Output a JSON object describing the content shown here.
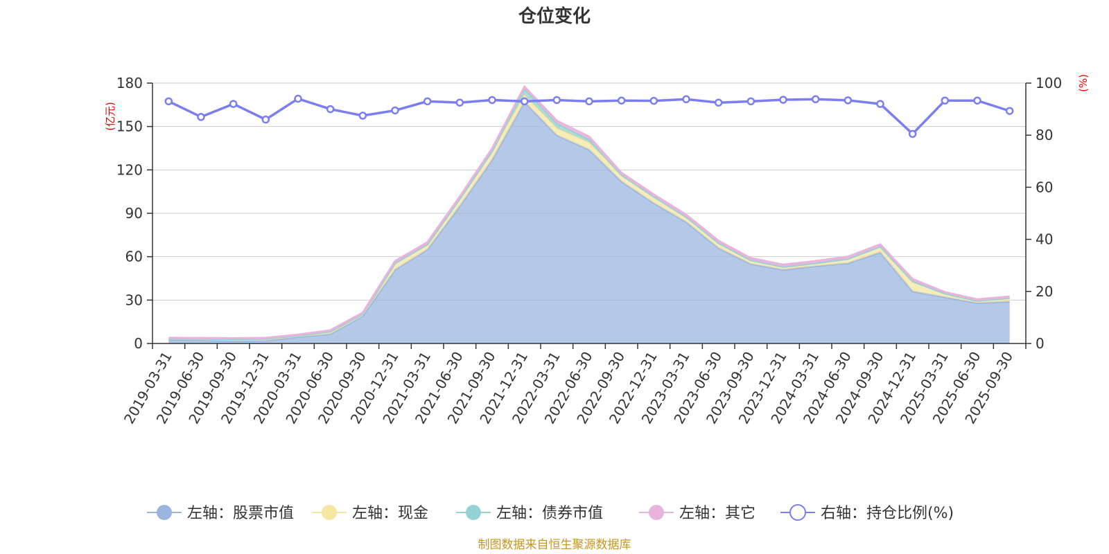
{
  "chart_data": {
    "type": "area",
    "title": "仓位变化",
    "source": "制图数据来自恒生聚源数据库",
    "left_unit": "(亿元)",
    "right_unit": "(%)",
    "left_ylim": [
      0,
      180
    ],
    "left_ticks": [
      0,
      30,
      60,
      90,
      120,
      150,
      180
    ],
    "right_ylim": [
      0,
      100
    ],
    "right_ticks": [
      0,
      20,
      40,
      60,
      80,
      100
    ],
    "grid": true,
    "legend_position": "bottom",
    "x": [
      "2019-03-31",
      "2019-06-30",
      "2019-09-30",
      "2019-12-31",
      "2020-03-31",
      "2020-06-30",
      "2020-09-30",
      "2020-12-31",
      "2021-03-31",
      "2021-06-30",
      "2021-09-30",
      "2021-12-31",
      "2022-03-31",
      "2022-06-30",
      "2022-09-30",
      "2022-12-31",
      "2023-03-31",
      "2023-06-30",
      "2023-09-30",
      "2023-12-31",
      "2024-03-31",
      "2024-06-30",
      "2024-09-30",
      "2024-12-31",
      "2025-03-31",
      "2025-06-30",
      "2025-09-30"
    ],
    "stack_series": [
      {
        "name": "左轴：股票市值",
        "color": "#9bb5e0",
        "values": [
          2.5,
          2.2,
          1.8,
          2.0,
          4.5,
          6.5,
          19,
          51,
          65,
          95,
          127,
          167,
          144,
          134,
          112,
          97,
          84,
          66,
          55,
          51,
          53.5,
          55.5,
          63,
          36,
          32,
          28,
          29
        ]
      },
      {
        "name": "左轴：现金",
        "color": "#f6e7a3",
        "values": [
          0.8,
          1.0,
          1.2,
          1.3,
          1.0,
          1.8,
          1.5,
          4.5,
          3.5,
          5,
          6,
          5,
          5,
          5,
          4.5,
          4.5,
          3.5,
          3.5,
          2.5,
          2.0,
          2.0,
          3.0,
          4.0,
          7,
          2.5,
          1.5,
          2.5
        ]
      },
      {
        "name": "左轴：债券市值",
        "color": "#94d3d3",
        "values": [
          0,
          0,
          0,
          0,
          0,
          0,
          0,
          0,
          0,
          0,
          0,
          4,
          3,
          2,
          0,
          0,
          0,
          0,
          0,
          0,
          0,
          0,
          0,
          0,
          0,
          0,
          0
        ]
      },
      {
        "name": "左轴：其它",
        "color": "#e8b4dc",
        "values": [
          0.6,
          0.6,
          0.6,
          0.6,
          0.6,
          0.8,
          0.8,
          1.5,
          1.5,
          1.5,
          1.8,
          1.5,
          2,
          2,
          1.5,
          1.5,
          1.5,
          1.5,
          1.5,
          1.5,
          1.5,
          1.5,
          1.5,
          1.5,
          1.0,
          1.0,
          1.0
        ]
      }
    ],
    "line_series": {
      "name": "右轴：持仓比例(%)",
      "color": "#7b7ef0",
      "values": [
        93,
        87,
        92,
        86,
        94,
        90,
        87.5,
        89.5,
        93,
        92.5,
        93.5,
        93,
        93.5,
        93,
        93.3,
        93.2,
        93.8,
        92.5,
        93,
        93.6,
        93.8,
        93.4,
        92,
        80.5,
        93.3,
        93.3,
        89.3
      ]
    }
  }
}
